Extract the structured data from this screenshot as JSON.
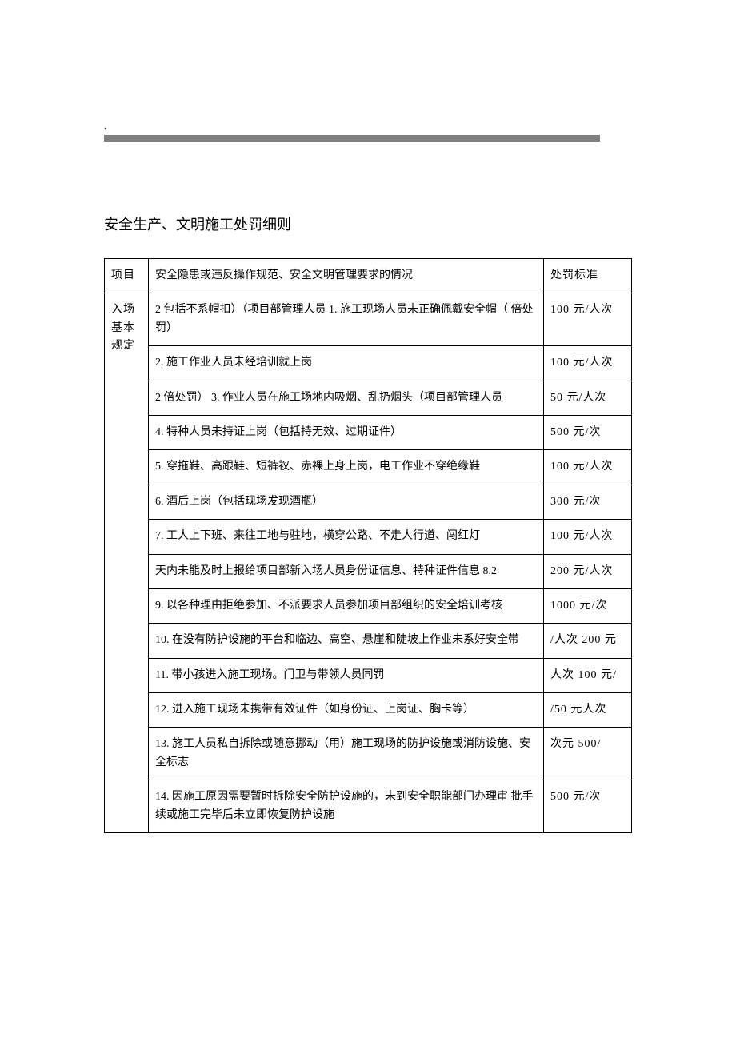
{
  "top_dot": ".",
  "title": "安全生产、文明施工处罚细则",
  "colors": {
    "text": "#000000",
    "background": "#ffffff",
    "border": "#000000"
  },
  "typography": {
    "body_fontsize": 14,
    "title_fontsize": 18,
    "font_family": "SimSun"
  },
  "table": {
    "headers": {
      "category": "项目",
      "situation": "安全隐患或违反操作规范、安全文明管理要求的情况",
      "penalty": "处罚标准"
    },
    "column_widths": {
      "category": 55,
      "penalty": 110
    },
    "category_label": "入场基本规定",
    "rows": [
      {
        "situation": "2 包括不系帽扣）（项目部管理人员 1. 施工现场人员未正确佩戴安全帽（ 倍处罚）",
        "penalty": "100 元/人次"
      },
      {
        "situation": "2. 施工作业人员未经培训就上岗",
        "penalty": "100 元/人次"
      },
      {
        "situation": "2 倍处罚）  3. 作业人员在施工场地内吸烟、乱扔烟头（项目部管理人员",
        "penalty": "50 元/人次"
      },
      {
        "situation": "4. 特种人员未持证上岗（包括持无效、过期证件）",
        "penalty": "500 元/次"
      },
      {
        "situation": "  5. 穿拖鞋、高跟鞋、短裤衩、赤裸上身上岗，电工作业不穿绝缘鞋",
        "penalty": "100 元/人次"
      },
      {
        "situation": "6. 酒后上岗（包括现场发现酒瓶）",
        "penalty": "300 元/次"
      },
      {
        "situation": "  7. 工人上下班、来往工地与驻地，横穿公路、不走人行道、闯红灯",
        "penalty": "100 元/人次"
      },
      {
        "situation": "  天内未能及时上报给项目部新入场人员身份证信息、特种证件信息 8.2",
        "penalty": "200 元/人次"
      },
      {
        "situation": "9. 以各种理由拒绝参加、不派要求人员参加项目部组织的安全培训考核",
        "penalty": "1000 元/次"
      },
      {
        "situation": "10. 在没有防护设施的平台和临边、高空、悬崖和陡坡上作业未系好安全带",
        "penalty": "/人次 200 元"
      },
      {
        "situation": "11. 带小孩进入施工现场。门卫与带领人员同罚",
        "penalty": "人次 100 元/"
      },
      {
        "situation": "12. 进入施工现场未携带有效证件（如身份证、上岗证、胸卡等）",
        "penalty": "/50 元人次"
      },
      {
        "situation": "13. 施工人员私自拆除或随意挪动（用）施工现场的防护设施或消防设施、安全标志",
        "penalty": "次元 500/"
      },
      {
        "situation": "14. 因施工原因需要暂时拆除安全防护设施的，未到安全职能部门办理审 批手续或施工完毕后未立即恢复防护设施",
        "penalty": "500 元/次"
      }
    ]
  }
}
